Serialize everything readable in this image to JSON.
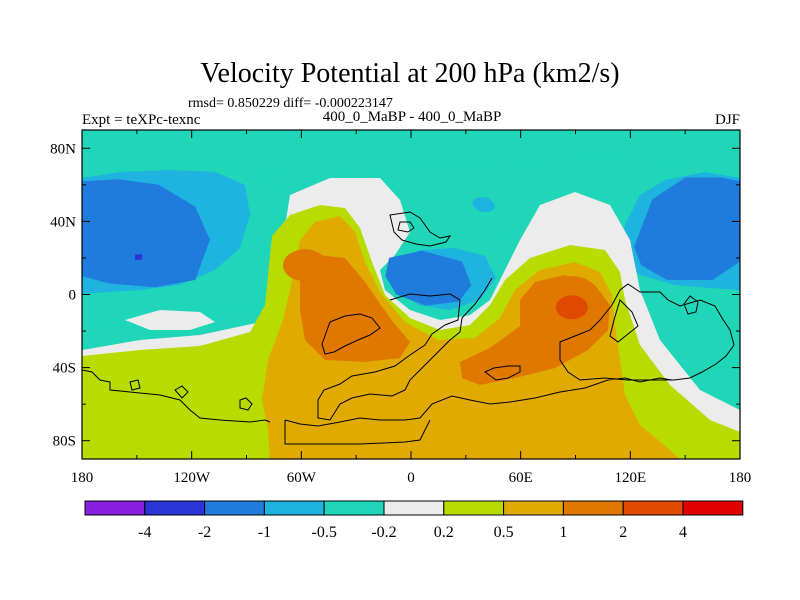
{
  "chart_data": {
    "type": "heatmap",
    "title": "Velocity Potential at 200 hPa (km2/s)",
    "stats_line": "rmsd= 0.850229 diff= -0.000223147",
    "left_label": "Expt = teXPc-texnc",
    "center_label": "400_0_MaBP - 400_0_MaBP",
    "right_label": "DJF",
    "x_ticks": [
      "180",
      "120W",
      "60W",
      "0",
      "60E",
      "120E",
      "180"
    ],
    "x_tick_values": [
      -180,
      -120,
      -60,
      0,
      60,
      120,
      180
    ],
    "y_ticks": [
      "80N",
      "40N",
      "0",
      "40S",
      "80S"
    ],
    "y_tick_values": [
      80,
      40,
      0,
      -40,
      -80
    ],
    "xlim": [
      -180,
      180
    ],
    "ylim": [
      -90,
      90
    ],
    "colorbar_labels": [
      "-4",
      "-2",
      "-1",
      "-0.5",
      "-0.2",
      "0.2",
      "0.5",
      "1",
      "2",
      "4"
    ],
    "colorbar_colors": [
      "#8b1fe0",
      "#2a35d8",
      "#1f7bdc",
      "#1fb3e0",
      "#1fd6b8",
      "#ececec",
      "#b9dc00",
      "#e0aa00",
      "#e07800",
      "#e04a00",
      "#e00000"
    ],
    "fields": [
      {
        "level": "-2",
        "polygons": [
          [
            [
              -180,
              62
            ],
            [
              -160,
              63
            ],
            [
              -138,
              60
            ],
            [
              -118,
              48
            ],
            [
              -110,
              30
            ],
            [
              -118,
              8
            ],
            [
              -140,
              4
            ],
            [
              -165,
              6
            ],
            [
              -180,
              10
            ]
          ],
          [
            [
              122,
              26
            ],
            [
              132,
              52
            ],
            [
              150,
              64
            ],
            [
              170,
              64
            ],
            [
              180,
              62
            ],
            [
              180,
              18
            ],
            [
              165,
              8
            ],
            [
              140,
              8
            ],
            [
              126,
              16
            ]
          ],
          [
            [
              -12,
              20
            ],
            [
              6,
              24
            ],
            [
              28,
              18
            ],
            [
              33,
              5
            ],
            [
              26,
              -4
            ],
            [
              8,
              -6
            ],
            [
              -8,
              0
            ],
            [
              -14,
              10
            ]
          ]
        ]
      },
      {
        "level": "-4",
        "polygons": [
          [
            [
              -151,
              22
            ],
            [
              -147,
              22
            ],
            [
              -147,
              19
            ],
            [
              -151,
              19
            ]
          ]
        ]
      }
    ],
    "point_regions": [
      {
        "level": "-1",
        "lon": 39,
        "lat": 50
      },
      {
        "level": "2",
        "lon": -58,
        "lat": 16
      },
      {
        "level": "2",
        "lon": 88,
        "lat": -2
      },
      {
        "level": "4",
        "lon": 88,
        "lat": -7
      }
    ]
  }
}
